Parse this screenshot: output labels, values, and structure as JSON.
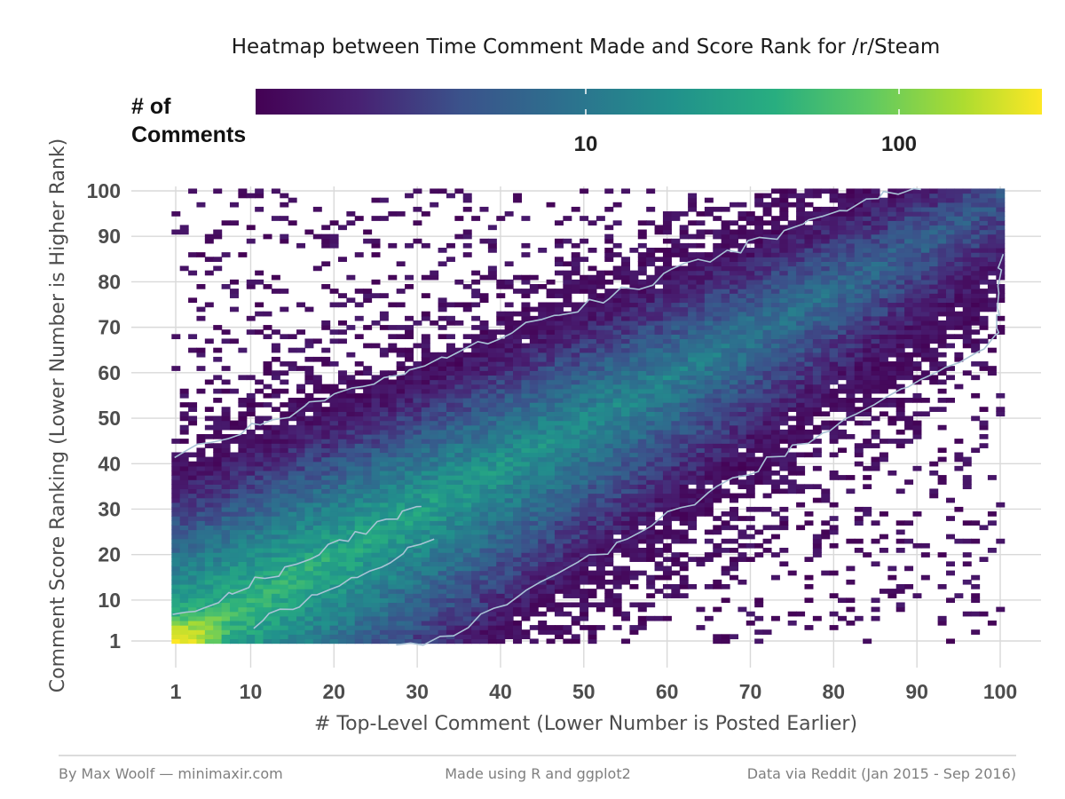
{
  "chart_data": {
    "type": "heatmap",
    "title": "Heatmap between Time Comment Made and Score Rank for /r/Steam",
    "xlabel": "# Top-Level Comment (Lower Number is Posted Earlier)",
    "ylabel": "Comment Score Ranking (Lower Number is Higher Rank)",
    "xlim": [
      1,
      100
    ],
    "ylim": [
      1,
      100
    ],
    "x_ticks": [
      "1",
      "10",
      "20",
      "30",
      "40",
      "50",
      "60",
      "70",
      "80",
      "90",
      "100"
    ],
    "y_ticks": [
      "1",
      "10",
      "20",
      "30",
      "40",
      "50",
      "60",
      "70",
      "80",
      "90",
      "100"
    ],
    "grid": true,
    "legend": {
      "title_line1": "# of",
      "title_line2": "Comments",
      "scale": "log10",
      "range": [
        1,
        300
      ],
      "ticks": [
        "10",
        "100"
      ],
      "palette": [
        "#440154",
        "#3b528b",
        "#21918c",
        "#5ec962",
        "#fde725"
      ],
      "placement": "top"
    },
    "fill_scale": "viridis",
    "contour_color": "#a9c3d6",
    "description_of_density": [
      {
        "x": 1,
        "y": 1,
        "count": 300
      },
      {
        "x": 10,
        "y": 8,
        "count": 60
      },
      {
        "x": 30,
        "y": 28,
        "count": 45
      },
      {
        "x": 45,
        "y": 45,
        "count": 25
      },
      {
        "x": 70,
        "y": 70,
        "count": 12
      },
      {
        "x": 100,
        "y": 100,
        "count": 5
      }
    ]
  },
  "caption": {
    "left": "By Max Woolf — minimaxir.com",
    "center": "Made using R and ggplot2",
    "right": "Data via Reddit (Jan 2015 - Sep 2016)"
  }
}
